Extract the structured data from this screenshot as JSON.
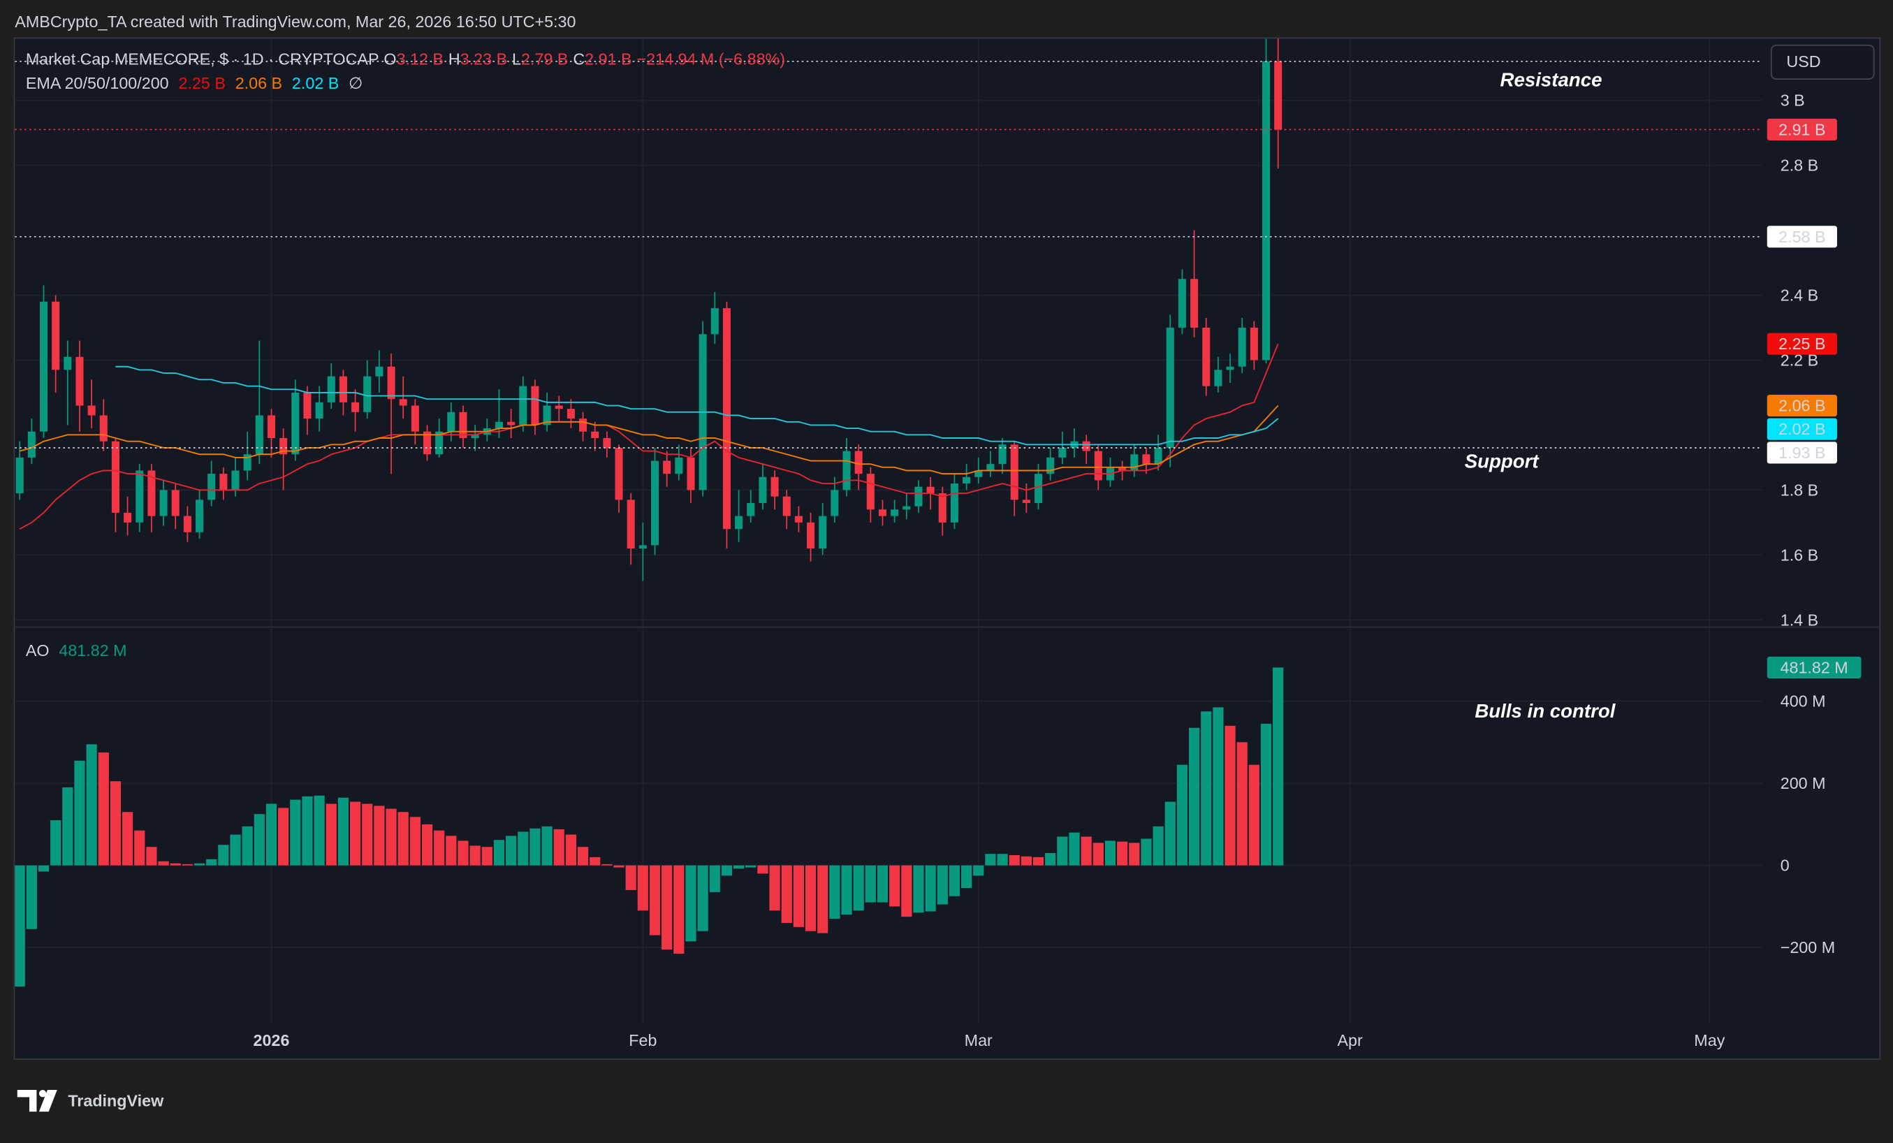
{
  "header": "AMBCrypto_TA created with TradingView.com, Mar 26, 2026 16:50 UTC+5:30",
  "brand": "TradingView",
  "chart_data": [
    {
      "type": "candlestick",
      "title": "Market Cap MEMECORE, $ · 1D · CRYPTOCAP",
      "ohlc_legend": [
        {
          "key": "O",
          "value": "3.12 B"
        },
        {
          "key": "H",
          "value": "3.23 B"
        },
        {
          "key": "L",
          "value": "2.79 B"
        },
        {
          "key": "C",
          "value": "2.91 B"
        }
      ],
      "change": "−214.94 M (−6.88%)",
      "axis_unit": "USD",
      "x": [
        0,
        1,
        2,
        3,
        4,
        5,
        6,
        7,
        8,
        9,
        10,
        11,
        12,
        13,
        14,
        15,
        16,
        17,
        18,
        19,
        20,
        21,
        22,
        23,
        24,
        25,
        26,
        27,
        28,
        29,
        30,
        31,
        32,
        33,
        34,
        35,
        36,
        37,
        38,
        39,
        40,
        41,
        42,
        43,
        44,
        45,
        46,
        47,
        48,
        49,
        50,
        51,
        52,
        53,
        54,
        55,
        56,
        57,
        58,
        59,
        60,
        61,
        62,
        63,
        64,
        65,
        66,
        67,
        68,
        69,
        70,
        71,
        72,
        73,
        74,
        75,
        76,
        77,
        78,
        79,
        80,
        81,
        82,
        83,
        84,
        85,
        86,
        87,
        88,
        89,
        90,
        91,
        92,
        93,
        94,
        95,
        96,
        97,
        98,
        99,
        100,
        101,
        102,
        103,
        104,
        105
      ],
      "open": [
        1.79,
        1.9,
        1.98,
        2.38,
        2.17,
        2.21,
        2.06,
        2.03,
        1.95,
        1.73,
        1.7,
        1.86,
        1.72,
        1.8,
        1.72,
        1.67,
        1.77,
        1.85,
        1.8,
        1.86,
        1.91,
        2.03,
        1.96,
        1.91,
        2.1,
        2.02,
        2.07,
        2.15,
        2.07,
        2.04,
        2.15,
        2.18,
        2.08,
        2.06,
        1.98,
        1.91,
        1.98,
        2.04,
        1.96,
        1.97,
        1.99,
        2.01,
        2.0,
        2.12,
        2.0,
        2.06,
        2.05,
        2.02,
        1.98,
        1.96,
        1.93,
        1.77,
        1.62,
        1.63,
        1.89,
        1.85,
        1.9,
        1.8,
        2.28,
        2.36,
        1.68,
        1.72,
        1.76,
        1.84,
        1.78,
        1.72,
        1.7,
        1.62,
        1.72,
        1.8,
        1.92,
        1.85,
        1.74,
        1.72,
        1.74,
        1.75,
        1.81,
        1.79,
        1.7,
        1.82,
        1.84,
        1.86,
        1.88,
        1.94,
        1.77,
        1.76,
        1.85,
        1.9,
        1.93,
        1.95,
        1.92,
        1.83,
        1.87,
        1.86,
        1.91,
        1.88,
        1.93,
        2.3,
        2.45,
        2.3,
        2.12,
        2.17,
        2.18,
        2.3,
        2.2,
        3.12
      ],
      "high": [
        1.95,
        2.02,
        2.43,
        2.4,
        2.26,
        2.26,
        2.14,
        2.08,
        1.96,
        1.78,
        1.88,
        1.88,
        1.83,
        1.82,
        1.75,
        1.8,
        1.89,
        1.87,
        1.9,
        1.98,
        2.26,
        2.05,
        1.99,
        2.14,
        2.12,
        2.12,
        2.19,
        2.17,
        2.11,
        2.2,
        2.23,
        2.22,
        2.15,
        2.08,
        2.0,
        2.02,
        2.07,
        2.06,
        2.0,
        2.02,
        2.11,
        2.05,
        2.15,
        2.14,
        2.1,
        2.09,
        2.08,
        2.04,
        2.01,
        1.98,
        1.94,
        1.79,
        1.7,
        1.93,
        1.92,
        1.94,
        1.93,
        2.32,
        2.41,
        2.38,
        1.8,
        1.8,
        1.88,
        1.86,
        1.8,
        1.75,
        1.73,
        1.76,
        1.84,
        1.96,
        1.94,
        1.87,
        1.77,
        1.77,
        1.79,
        1.83,
        1.84,
        1.81,
        1.85,
        1.88,
        1.9,
        1.92,
        1.96,
        1.95,
        1.82,
        1.88,
        1.93,
        1.98,
        1.99,
        1.97,
        1.94,
        1.9,
        1.89,
        1.94,
        1.93,
        1.97,
        2.34,
        2.48,
        2.6,
        2.33,
        2.21,
        2.22,
        2.33,
        2.32,
        3.19,
        3.23
      ],
      "low": [
        1.77,
        1.88,
        1.96,
        2.1,
        2.0,
        1.98,
        1.99,
        1.92,
        1.67,
        1.66,
        1.67,
        1.67,
        1.69,
        1.68,
        1.64,
        1.65,
        1.75,
        1.77,
        1.78,
        1.83,
        1.88,
        1.9,
        1.8,
        1.89,
        1.97,
        1.98,
        2.05,
        2.03,
        1.98,
        2.02,
        2.1,
        1.85,
        2.02,
        1.94,
        1.89,
        1.9,
        1.95,
        1.93,
        1.92,
        1.95,
        1.96,
        1.96,
        1.98,
        1.97,
        1.98,
        2.01,
        1.99,
        1.95,
        1.92,
        1.9,
        1.73,
        1.57,
        1.52,
        1.6,
        1.81,
        1.83,
        1.76,
        1.78,
        2.25,
        1.62,
        1.64,
        1.7,
        1.74,
        1.74,
        1.68,
        1.67,
        1.58,
        1.6,
        1.7,
        1.78,
        1.8,
        1.7,
        1.69,
        1.7,
        1.71,
        1.73,
        1.74,
        1.66,
        1.68,
        1.8,
        1.82,
        1.84,
        1.85,
        1.72,
        1.73,
        1.74,
        1.83,
        1.88,
        1.9,
        1.88,
        1.8,
        1.81,
        1.83,
        1.84,
        1.85,
        1.86,
        1.87,
        2.28,
        2.27,
        2.09,
        2.1,
        2.13,
        2.16,
        2.17,
        2.19,
        2.79
      ],
      "close": [
        1.9,
        1.98,
        2.38,
        2.17,
        2.21,
        2.06,
        2.03,
        1.95,
        1.73,
        1.7,
        1.86,
        1.72,
        1.8,
        1.72,
        1.67,
        1.77,
        1.85,
        1.8,
        1.86,
        1.91,
        2.03,
        1.96,
        1.91,
        2.1,
        2.02,
        2.07,
        2.15,
        2.07,
        2.04,
        2.15,
        2.18,
        2.08,
        2.06,
        1.98,
        1.91,
        1.98,
        2.04,
        1.96,
        1.97,
        1.99,
        2.01,
        2.0,
        2.12,
        2.0,
        2.06,
        2.05,
        2.02,
        1.98,
        1.96,
        1.93,
        1.77,
        1.62,
        1.63,
        1.89,
        1.85,
        1.9,
        1.8,
        2.28,
        2.36,
        1.68,
        1.72,
        1.76,
        1.84,
        1.78,
        1.72,
        1.7,
        1.62,
        1.72,
        1.8,
        1.92,
        1.85,
        1.74,
        1.72,
        1.74,
        1.75,
        1.81,
        1.79,
        1.7,
        1.82,
        1.84,
        1.86,
        1.88,
        1.94,
        1.77,
        1.76,
        1.85,
        1.9,
        1.93,
        1.95,
        1.92,
        1.83,
        1.87,
        1.86,
        1.91,
        1.88,
        1.93,
        2.3,
        2.45,
        2.3,
        2.12,
        2.17,
        2.18,
        2.3,
        2.2,
        3.12,
        2.91
      ],
      "up_color": "#089981",
      "down_color": "#f23645",
      "indicator": "EMA 20/50/100/200",
      "indicator_extra": "∅",
      "series": [
        {
          "color": "#e5252f",
          "label_color": "#f20d0d",
          "label_text_color": "#ffffff",
          "last_label": "2.25 B",
          "values": [
            1.68,
            1.7,
            1.73,
            1.77,
            1.8,
            1.83,
            1.85,
            1.86,
            1.86,
            1.85,
            1.85,
            1.84,
            1.83,
            1.82,
            1.81,
            1.8,
            1.8,
            1.8,
            1.8,
            1.8,
            1.82,
            1.83,
            1.84,
            1.86,
            1.88,
            1.89,
            1.91,
            1.92,
            1.93,
            1.95,
            1.96,
            1.97,
            1.97,
            1.97,
            1.97,
            1.97,
            1.97,
            1.97,
            1.97,
            1.98,
            1.98,
            1.99,
            2.0,
            2.0,
            2.01,
            2.01,
            2.01,
            2.01,
            2.0,
            2.0,
            1.98,
            1.95,
            1.92,
            1.92,
            1.91,
            1.91,
            1.9,
            1.93,
            1.95,
            1.92,
            1.9,
            1.89,
            1.88,
            1.87,
            1.86,
            1.85,
            1.83,
            1.82,
            1.82,
            1.83,
            1.83,
            1.82,
            1.81,
            1.8,
            1.79,
            1.79,
            1.79,
            1.78,
            1.79,
            1.79,
            1.8,
            1.81,
            1.82,
            1.81,
            1.8,
            1.81,
            1.82,
            1.83,
            1.84,
            1.85,
            1.85,
            1.85,
            1.86,
            1.86,
            1.86,
            1.87,
            1.91,
            1.96,
            2.0,
            2.02,
            2.03,
            2.04,
            2.06,
            2.07,
            2.16,
            2.25
          ]
        },
        {
          "color": "#f57c00",
          "label_color": "#f57c00",
          "label_text_color": "#000000",
          "last_label": "2.06 B",
          "values": [
            1.92,
            1.93,
            1.95,
            1.96,
            1.97,
            1.97,
            1.97,
            1.97,
            1.96,
            1.95,
            1.95,
            1.94,
            1.93,
            1.93,
            1.92,
            1.91,
            1.91,
            1.91,
            1.9,
            1.9,
            1.91,
            1.91,
            1.92,
            1.92,
            1.93,
            1.93,
            1.94,
            1.94,
            1.95,
            1.95,
            1.96,
            1.96,
            1.97,
            1.97,
            1.97,
            1.97,
            1.98,
            1.98,
            1.98,
            1.98,
            1.99,
            1.99,
            2.0,
            2.0,
            2.01,
            2.01,
            2.01,
            2.01,
            2.0,
            2.0,
            1.99,
            1.98,
            1.97,
            1.97,
            1.96,
            1.96,
            1.95,
            1.96,
            1.96,
            1.95,
            1.94,
            1.93,
            1.93,
            1.92,
            1.91,
            1.9,
            1.89,
            1.89,
            1.89,
            1.89,
            1.88,
            1.88,
            1.87,
            1.87,
            1.86,
            1.86,
            1.86,
            1.85,
            1.85,
            1.85,
            1.86,
            1.86,
            1.86,
            1.86,
            1.86,
            1.86,
            1.86,
            1.87,
            1.87,
            1.87,
            1.87,
            1.87,
            1.87,
            1.87,
            1.88,
            1.88,
            1.9,
            1.92,
            1.94,
            1.95,
            1.95,
            1.96,
            1.97,
            1.98,
            2.02,
            2.06
          ]
        },
        {
          "color": "#26c6da",
          "label_color": "#00e5ff",
          "label_text_color": "#000000",
          "last_label": "2.02 B",
          "values": [
            null,
            null,
            null,
            null,
            null,
            null,
            null,
            null,
            2.18,
            2.18,
            2.17,
            2.17,
            2.16,
            2.16,
            2.15,
            2.14,
            2.14,
            2.13,
            2.13,
            2.12,
            2.12,
            2.11,
            2.11,
            2.11,
            2.1,
            2.1,
            2.1,
            2.1,
            2.1,
            2.09,
            2.09,
            2.09,
            2.09,
            2.09,
            2.08,
            2.08,
            2.08,
            2.08,
            2.08,
            2.08,
            2.08,
            2.08,
            2.08,
            2.08,
            2.07,
            2.07,
            2.07,
            2.07,
            2.07,
            2.06,
            2.06,
            2.05,
            2.05,
            2.05,
            2.04,
            2.04,
            2.04,
            2.04,
            2.04,
            2.03,
            2.03,
            2.02,
            2.02,
            2.02,
            2.01,
            2.01,
            2.0,
            2.0,
            2.0,
            1.99,
            1.99,
            1.98,
            1.98,
            1.98,
            1.97,
            1.97,
            1.97,
            1.96,
            1.96,
            1.96,
            1.96,
            1.95,
            1.95,
            1.95,
            1.94,
            1.94,
            1.94,
            1.94,
            1.94,
            1.94,
            1.94,
            1.94,
            1.94,
            1.94,
            1.94,
            1.94,
            1.95,
            1.95,
            1.96,
            1.96,
            1.96,
            1.97,
            1.97,
            1.98,
            1.99,
            2.02
          ]
        }
      ],
      "levels": [
        {
          "value": 3.12,
          "color": "#d1d4dc"
        },
        {
          "value": 2.91,
          "color": "#f23645",
          "label": "2.91 B",
          "label_color": "#f23645",
          "label_text_color": "#ffffff"
        },
        {
          "value": 2.58,
          "color": "#d1d4dc",
          "label": "2.58 B",
          "label_color": "#ffffff",
          "label_text_color": "#000000"
        },
        {
          "value": 1.93,
          "color": "#d1d4dc",
          "label": "1.93 B",
          "label_color": "#ffffff",
          "label_text_color": "#000000"
        }
      ],
      "annotations": [
        "Resistance",
        "Support"
      ],
      "xlim": [
        -0.4,
        145.4
      ],
      "xticks": [
        {
          "value": 21,
          "label": "2026"
        },
        {
          "value": 52,
          "label": "Feb"
        },
        {
          "value": 80,
          "label": "Mar"
        },
        {
          "value": 111,
          "label": "Apr"
        },
        {
          "value": 141,
          "label": "May"
        }
      ],
      "ylim": [
        1.38,
        3.19
      ],
      "yticks": [
        {
          "value": 3,
          "label": "3 B"
        },
        {
          "value": 2.8,
          "label": "2.8 B"
        },
        {
          "value": 2.4,
          "label": "2.4 B"
        },
        {
          "value": 2.2,
          "label": "2.2 B"
        },
        {
          "value": 1.8,
          "label": "1.8 B"
        },
        {
          "value": 1.6,
          "label": "1.6 B"
        },
        {
          "value": 1.4,
          "label": "1.4 B"
        }
      ],
      "grid": true
    },
    {
      "type": "bar",
      "title": "AO",
      "values": [
        -295,
        -155,
        -15,
        110,
        190,
        255,
        295,
        275,
        205,
        130,
        85,
        45,
        10,
        5,
        3,
        5,
        15,
        50,
        75,
        95,
        125,
        150,
        140,
        160,
        168,
        170,
        150,
        165,
        155,
        150,
        145,
        138,
        130,
        118,
        100,
        85,
        72,
        60,
        48,
        45,
        62,
        72,
        82,
        90,
        95,
        88,
        75,
        45,
        20,
        3,
        -5,
        -60,
        -110,
        -170,
        -205,
        -215,
        -185,
        -160,
        -65,
        -25,
        -8,
        -5,
        -20,
        -110,
        -140,
        -150,
        -160,
        -165,
        -130,
        -120,
        -110,
        -90,
        -90,
        -100,
        -125,
        -115,
        -112,
        -95,
        -75,
        -55,
        -25,
        28,
        28,
        25,
        22,
        20,
        30,
        70,
        80,
        70,
        55,
        60,
        58,
        55,
        65,
        95,
        155,
        245,
        335,
        375,
        385,
        340,
        300,
        245,
        345,
        481.82
      ],
      "last_label": "481.82 M",
      "up_color": "#089981",
      "down_color": "#f23645",
      "annotations": [
        "Bulls in control"
      ],
      "ylim": [
        -385,
        579
      ],
      "yticks": [
        {
          "value": 400,
          "label": "400 M"
        },
        {
          "value": 200,
          "label": "200 M"
        },
        0,
        {
          "value": -200,
          "label": "−200 M"
        }
      ],
      "grid": true
    }
  ]
}
